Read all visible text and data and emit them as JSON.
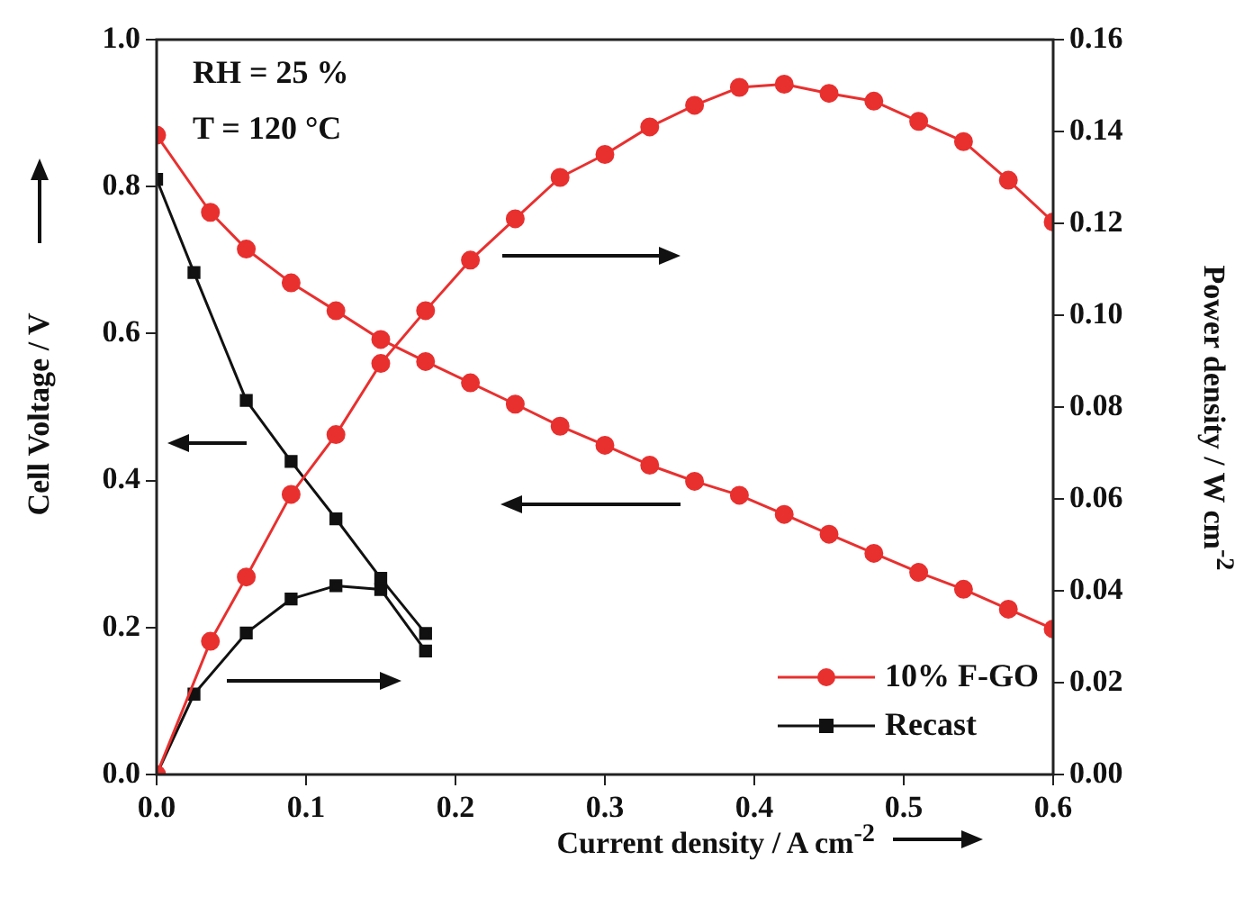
{
  "chart_data": {
    "type": "line",
    "xlabel": "Current density / A cm$^{-2}$",
    "ylabel": "Cell Voltage / V",
    "y2label": "Power density / W cm$^{-2}$",
    "annotations": [
      "RH = 25 %",
      "T = 120 °C"
    ],
    "xlim": [
      0,
      0.6
    ],
    "xticks": [
      {
        "value": 0,
        "label": "0.0"
      },
      0.1,
      0.2,
      0.3,
      0.4,
      0.5,
      0.6
    ],
    "ylim": [
      0,
      1.0
    ],
    "yticks": [
      {
        "value": 0,
        "label": "0.0"
      },
      0.2,
      0.4,
      0.6,
      0.8,
      {
        "value": 1.0,
        "label": "1.0"
      }
    ],
    "y2lim": [
      0,
      0.16
    ],
    "y2ticks": [
      {
        "value": 0,
        "label": "0.00"
      },
      0.02,
      0.04,
      0.06,
      0.08,
      {
        "value": 0.1,
        "label": "0.10"
      },
      0.12,
      0.14,
      0.16
    ],
    "grid": false,
    "legend": "bottom right",
    "line_style": "solid",
    "series": [
      {
        "name": "10% F-GO",
        "color": "#e8302f",
        "marker": "circle",
        "x": [
          0,
          0.036,
          0.06,
          0.09,
          0.12,
          0.15,
          0.18,
          0.21,
          0.24,
          0.27,
          0.3,
          0.33,
          0.36,
          0.39,
          0.42,
          0.45,
          0.48,
          0.51,
          0.54,
          0.57,
          0.6
        ],
        "values": [
          0.87,
          0.765,
          0.715,
          0.669,
          0.631,
          0.592,
          0.562,
          0.533,
          0.504,
          0.474,
          0.448,
          0.421,
          0.399,
          0.38,
          0.354,
          0.327,
          0.301,
          0.275,
          0.252,
          0.225,
          0.198
        ]
      },
      {
        "color": "#e8302f",
        "marker": "circle",
        "axis": "y2",
        "x": [
          0,
          0.036,
          0.06,
          0.09,
          0.12,
          0.15,
          0.18,
          0.21,
          0.24,
          0.27,
          0.3,
          0.33,
          0.36,
          0.39,
          0.42,
          0.45,
          0.48,
          0.51,
          0.54,
          0.57,
          0.6
        ],
        "values": [
          0,
          0.029,
          0.043,
          0.061,
          0.074,
          0.0895,
          0.101,
          0.112,
          0.121,
          0.13,
          0.135,
          0.141,
          0.1457,
          0.1496,
          0.1503,
          0.1483,
          0.1466,
          0.1422,
          0.1378,
          0.1294,
          0.1203
        ]
      },
      {
        "name": "Recast",
        "color": "#111111",
        "marker": "square",
        "x": [
          0,
          0.025,
          0.06,
          0.09,
          0.12,
          0.15,
          0.18
        ],
        "values": [
          0.81,
          0.683,
          0.509,
          0.426,
          0.348,
          0.267,
          0.192
        ]
      },
      {
        "color": "#111111",
        "marker": "square",
        "axis": "y2",
        "x": [
          0,
          0.025,
          0.06,
          0.09,
          0.12,
          0.15,
          0.18
        ],
        "values": [
          0,
          0.0175,
          0.0308,
          0.0382,
          0.0411,
          0.0403,
          0.0269
        ]
      }
    ]
  }
}
